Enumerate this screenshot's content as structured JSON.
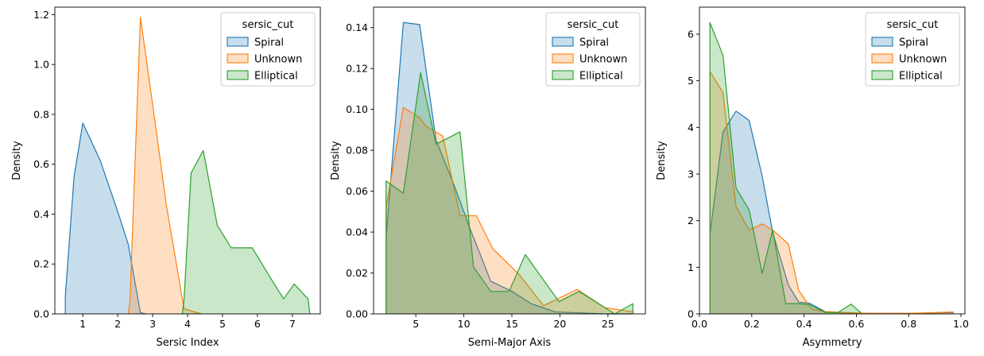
{
  "chart_data": [
    {
      "type": "area",
      "xlabel": "Sersic Index",
      "ylabel": "Density",
      "xlim": [
        0.2,
        7.8
      ],
      "ylim": [
        0,
        1.23
      ],
      "xticks": [
        1,
        2,
        3,
        4,
        5,
        6,
        7
      ],
      "yticks": [
        0.0,
        0.2,
        0.4,
        0.6,
        0.8,
        1.0,
        1.2
      ],
      "ytick_decimals": 1,
      "legend": {
        "title": "sersic_cut",
        "position": "top-right"
      },
      "series": [
        {
          "name": "Spiral",
          "color": "#1f77b4",
          "x": [
            0.5,
            0.5,
            0.75,
            1.0,
            1.5,
            2.0,
            2.3,
            2.65,
            2.8
          ],
          "y": [
            0,
            0.07,
            0.55,
            0.765,
            0.615,
            0.41,
            0.28,
            0.005,
            0
          ]
        },
        {
          "name": "Unknown",
          "color": "#ff7f0e",
          "x": [
            2.3,
            2.35,
            2.65,
            3.0,
            3.4,
            3.9,
            4.4
          ],
          "y": [
            0,
            0.05,
            1.19,
            0.84,
            0.43,
            0.02,
            0
          ]
        },
        {
          "name": "Elliptical",
          "color": "#2ca02c",
          "x": [
            3.85,
            3.9,
            4.1,
            4.45,
            4.85,
            5.25,
            5.85,
            6.35,
            6.75,
            7.05,
            7.45,
            7.5
          ],
          "y": [
            0,
            0.06,
            0.565,
            0.655,
            0.355,
            0.265,
            0.265,
            0.15,
            0.06,
            0.12,
            0.06,
            0
          ]
        }
      ]
    },
    {
      "type": "area",
      "xlabel": "Semi-Major Axis",
      "ylabel": "Density",
      "xlim": [
        0.6,
        28.9
      ],
      "ylim": [
        0,
        0.15
      ],
      "xticks": [
        5,
        10,
        15,
        20,
        25
      ],
      "yticks": [
        0.0,
        0.02,
        0.04,
        0.06,
        0.08,
        0.1,
        0.12,
        0.14
      ],
      "ytick_decimals": 2,
      "legend": {
        "title": "sersic_cut",
        "position": "top-right"
      },
      "series": [
        {
          "name": "Spiral",
          "color": "#1f77b4",
          "x": [
            1.9,
            1.9,
            3.7,
            5.4,
            7.1,
            8.9,
            10.7,
            12.8,
            15.0,
            17.0,
            19.5,
            22.0,
            25.0,
            27.5
          ],
          "y": [
            0,
            0.037,
            0.1425,
            0.1415,
            0.085,
            0.064,
            0.041,
            0.016,
            0.011,
            0.005,
            0.001,
            0.0005,
            0,
            0
          ]
        },
        {
          "name": "Unknown",
          "color": "#ff7f0e",
          "x": [
            1.9,
            1.9,
            3.7,
            5.4,
            6.0,
            7.8,
            9.6,
            11.3,
            13.0,
            15.8,
            18.3,
            21.8,
            24.7,
            27.6,
            27.6
          ],
          "y": [
            0,
            0.052,
            0.101,
            0.096,
            0.092,
            0.087,
            0.048,
            0.048,
            0.032,
            0.019,
            0.004,
            0.012,
            0.003,
            0.001,
            0
          ]
        },
        {
          "name": "Elliptical",
          "color": "#2ca02c",
          "x": [
            1.9,
            1.9,
            3.7,
            5.5,
            7.1,
            9.6,
            11.0,
            12.8,
            14.7,
            16.4,
            19.9,
            22.0,
            25.7,
            27.6,
            27.6
          ],
          "y": [
            0,
            0.065,
            0.059,
            0.118,
            0.083,
            0.089,
            0.023,
            0.011,
            0.011,
            0.029,
            0.006,
            0.011,
            0,
            0.005,
            0
          ]
        }
      ]
    },
    {
      "type": "area",
      "xlabel": "Asymmetry",
      "ylabel": "Density",
      "xlim": [
        0.0,
        1.015
      ],
      "ylim": [
        0,
        6.58
      ],
      "xticks": [
        0.0,
        0.2,
        0.4,
        0.6,
        0.8,
        1.0
      ],
      "yticks": [
        0,
        1,
        2,
        3,
        4,
        5,
        6
      ],
      "xtick_decimals": 1,
      "ytick_decimals": 0,
      "legend": {
        "title": "sersic_cut",
        "position": "top-right"
      },
      "series": [
        {
          "name": "Spiral",
          "color": "#1f77b4",
          "x": [
            0.04,
            0.04,
            0.09,
            0.14,
            0.19,
            0.24,
            0.28,
            0.34,
            0.38,
            0.42,
            0.48,
            0.55,
            0.65,
            0.8,
            0.97,
            0.97
          ],
          "y": [
            0,
            1.7,
            3.9,
            4.35,
            4.15,
            2.95,
            1.75,
            0.62,
            0.25,
            0.23,
            0.05,
            0.02,
            0.01,
            0.01,
            0.03,
            0
          ]
        },
        {
          "name": "Unknown",
          "color": "#ff7f0e",
          "x": [
            0.04,
            0.04,
            0.09,
            0.14,
            0.19,
            0.24,
            0.28,
            0.34,
            0.38,
            0.43,
            0.48,
            0.55,
            0.65,
            0.8,
            0.97,
            0.97
          ],
          "y": [
            0,
            5.2,
            4.75,
            2.3,
            1.8,
            1.93,
            1.8,
            1.5,
            0.5,
            0.1,
            0.05,
            0.03,
            0.01,
            0.01,
            0.04,
            0
          ]
        },
        {
          "name": "Elliptical",
          "color": "#2ca02c",
          "x": [
            0.04,
            0.04,
            0.09,
            0.14,
            0.19,
            0.24,
            0.28,
            0.33,
            0.38,
            0.42,
            0.48,
            0.53,
            0.58,
            0.62,
            0.62
          ],
          "y": [
            0,
            6.25,
            5.55,
            2.7,
            2.23,
            0.87,
            1.8,
            0.22,
            0.22,
            0.2,
            0.03,
            0.03,
            0.21,
            0.01,
            0
          ]
        }
      ]
    }
  ]
}
